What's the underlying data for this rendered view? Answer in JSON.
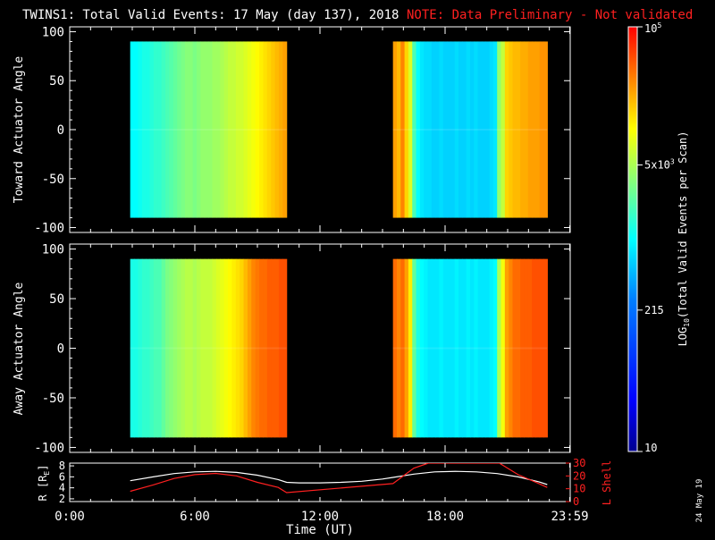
{
  "title": "TWINS1: Total Valid Events: 17 May (day 137), 2018",
  "note": "NOTE: Data Preliminary - Not validated",
  "date_stamp": "24 May 19",
  "colors": {
    "note": "#ff2020",
    "lshell": "#ff2020",
    "radius": "#ffffff",
    "axes": "#ffffff",
    "background": "#000000"
  },
  "chart_data": [
    {
      "type": "heatmap",
      "name": "toward",
      "ylabel": "Toward Actuator Angle",
      "ylim": [
        -105,
        105
      ],
      "yticks": [
        100,
        50,
        0,
        -50,
        -100
      ],
      "xlim": [
        0,
        24
      ],
      "angle_range": [
        -90,
        90
      ],
      "data_windows": [
        {
          "start_h": 2.9,
          "end_h": 10.4,
          "profile": [
            3.0,
            3.0,
            3.05,
            3.1,
            3.1,
            3.15,
            3.2,
            3.2,
            3.25,
            3.3,
            3.35,
            3.4,
            3.45,
            3.5,
            3.55,
            3.55,
            3.5,
            3.55,
            3.6,
            3.6,
            3.6,
            3.65,
            3.65,
            3.7,
            3.75,
            3.8,
            3.8,
            3.85,
            3.85,
            3.9,
            3.95,
            4.0,
            4.05,
            4.1,
            4.15,
            4.2,
            4.25,
            4.3,
            4.35,
            4.4
          ]
        },
        {
          "start_h": 15.5,
          "end_h": 22.9,
          "profile": [
            4.4,
            4.3,
            4.5,
            4.2,
            3.9,
            3.3,
            3.0,
            2.9,
            2.85,
            2.85,
            2.8,
            2.8,
            2.85,
            2.8,
            2.8,
            2.8,
            2.85,
            2.8,
            2.8,
            2.85,
            2.8,
            2.85,
            2.8,
            2.8,
            2.8,
            2.85,
            2.9,
            3.6,
            3.8,
            4.2,
            4.25,
            4.3,
            4.3,
            4.35,
            4.35,
            4.4,
            4.4,
            4.4,
            4.45,
            4.45
          ]
        }
      ]
    },
    {
      "type": "heatmap",
      "name": "away",
      "ylabel": "Away Actuator Angle",
      "ylim": [
        -105,
        105
      ],
      "yticks": [
        100,
        50,
        0,
        -50,
        -100
      ],
      "xlim": [
        0,
        24
      ],
      "angle_range": [
        -90,
        90
      ],
      "data_windows": [
        {
          "start_h": 2.9,
          "end_h": 10.4,
          "profile": [
            3.1,
            3.1,
            3.15,
            3.2,
            3.2,
            3.25,
            3.3,
            3.3,
            3.4,
            3.5,
            3.55,
            3.6,
            3.65,
            3.7,
            3.75,
            3.75,
            3.7,
            3.75,
            3.8,
            3.8,
            3.8,
            3.85,
            3.9,
            3.95,
            4.0,
            4.05,
            4.1,
            4.15,
            4.2,
            4.3,
            4.4,
            4.5,
            4.55,
            4.6,
            4.6,
            4.65,
            4.65,
            4.65,
            4.7,
            4.7
          ]
        },
        {
          "start_h": 15.5,
          "end_h": 22.9,
          "profile": [
            4.6,
            4.5,
            4.6,
            4.4,
            4.1,
            3.4,
            3.1,
            3.0,
            2.95,
            2.9,
            2.9,
            2.9,
            2.95,
            2.9,
            2.9,
            2.9,
            2.95,
            2.9,
            2.9,
            2.95,
            2.9,
            2.95,
            2.9,
            2.9,
            2.9,
            2.95,
            3.0,
            3.7,
            4.0,
            4.4,
            4.5,
            4.6,
            4.6,
            4.65,
            4.65,
            4.65,
            4.7,
            4.7,
            4.7,
            4.7
          ]
        }
      ]
    },
    {
      "type": "line",
      "name": "orbit",
      "ylabel": "R [R",
      "ylabel_sub": "E",
      "ylabel_close": "]",
      "ylim": [
        1.5,
        8.5
      ],
      "yticks": [
        8,
        6,
        4,
        2
      ],
      "y2label": "L Shell",
      "y2lim": [
        0,
        30
      ],
      "y2ticks": [
        30,
        20,
        10,
        0
      ],
      "xlim": [
        0,
        24
      ],
      "xlabel": "Time (UT)",
      "xticks": [
        {
          "h": 0,
          "label": "0:00"
        },
        {
          "h": 6,
          "label": "6:00"
        },
        {
          "h": 12,
          "label": "12:00"
        },
        {
          "h": 18,
          "label": "18:00"
        },
        {
          "h": 23.98,
          "label": "23:59"
        }
      ],
      "series": [
        {
          "name": "R",
          "axis": "left",
          "x": [
            2.9,
            4,
            5,
            6,
            7,
            8,
            9,
            10,
            10.4,
            11,
            12,
            13,
            14,
            15,
            15.5,
            16.5,
            17.5,
            18.5,
            19.5,
            20.5,
            21.5,
            22.5,
            22.9
          ],
          "values": [
            5.3,
            6.0,
            6.6,
            6.9,
            7.0,
            6.8,
            6.3,
            5.5,
            5.0,
            4.9,
            4.9,
            5.0,
            5.2,
            5.6,
            5.9,
            6.5,
            6.9,
            7.0,
            6.9,
            6.6,
            6.0,
            5.1,
            4.6
          ]
        },
        {
          "name": "L Shell",
          "axis": "right",
          "x": [
            2.9,
            4,
            5,
            6,
            7,
            8,
            9,
            10,
            10.4,
            15.5,
            16.5,
            17.2,
            20.6,
            21.5,
            22.5,
            22.9
          ],
          "values": [
            8,
            13,
            18,
            21,
            22,
            20,
            15,
            11,
            7,
            14,
            26,
            30,
            30,
            21,
            14,
            11
          ]
        }
      ]
    }
  ],
  "colorbar": {
    "label_prefix": "LOG",
    "label_sub": "10",
    "label_suffix": "(Total Valid Events per Scan)",
    "range_log": [
      1,
      5
    ],
    "ticks": [
      {
        "value": 5,
        "label": "10",
        "sup": "5"
      },
      {
        "value": 3.699,
        "label": "5x10",
        "sup": "3"
      },
      {
        "value": 2.332,
        "label": "215",
        "sup": ""
      },
      {
        "value": 1,
        "label": "10",
        "sup": ""
      }
    ]
  }
}
